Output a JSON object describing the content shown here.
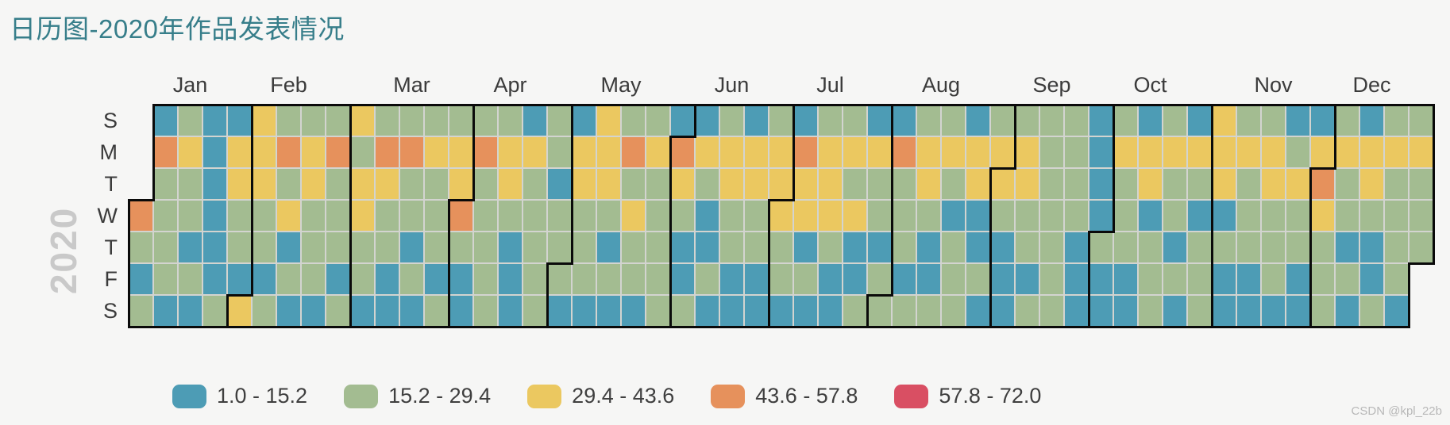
{
  "title": "日历图-2020年作品发表情况",
  "calendar": {
    "year_label": "2020",
    "month_labels": [
      "Jan",
      "Feb",
      "Mar",
      "Apr",
      "May",
      "Jun",
      "Jul",
      "Aug",
      "Sep",
      "Oct",
      "Nov",
      "Dec"
    ],
    "day_labels": [
      "S",
      "M",
      "T",
      "W",
      "T",
      "F",
      "S"
    ]
  },
  "legend": {
    "items": [
      {
        "key": "B",
        "label": "1.0 - 15.2",
        "color": "#4d9cb5"
      },
      {
        "key": "G",
        "label": "15.2 - 29.4",
        "color": "#a3bc91"
      },
      {
        "key": "Y",
        "label": "29.4 - 43.6",
        "color": "#ebc860"
      },
      {
        "key": "O",
        "label": "43.6 - 57.8",
        "color": "#e6915c"
      },
      {
        "key": "R",
        "label": "57.8 - 72.0",
        "color": "#d94f63"
      }
    ]
  },
  "watermark": "CSDN @kpl_22b",
  "chart_data": {
    "type": "heatmap",
    "subtype": "calendar",
    "year": 2020,
    "grid_start_date": "2019-12-29",
    "weeks_start_on": "Sunday",
    "bins": {
      "B": [
        1.0,
        15.2
      ],
      "G": [
        15.2,
        29.4
      ],
      "Y": [
        29.4,
        43.6
      ],
      "O": [
        43.6,
        57.8
      ],
      "R": [
        57.8,
        72.0
      ]
    },
    "bin_midpoints": {
      "B": 8.1,
      "G": 22.3,
      "Y": 36.5,
      "O": 50.7,
      "R": 64.9
    },
    "encoding": "Each string is one Sun-to-Sat week column, first char = Sunday row; letters are value bins, '.' = day outside 2020",
    "weeks": [
      "...OGBG",
      "BOGGGGB",
      "GYGGBGB",
      "BBBBBBG",
      "BYYGGBY",
      "YYYGGBG",
      "GOGYBGB",
      "GYYGGGB",
      "GOGGGBG",
      "YGYYGGB",
      "GOYGGBB",
      "GOGGBGB",
      "GYGGGBG",
      "GYYOGBB",
      "GOGGGGG",
      "GYYGBBB",
      "BYGGGGG",
      "GGBGGGB",
      "BYYGGGB",
      "YYYGBGB",
      "GOGYGGB",
      "GYGGGGG",
      "BOYGBBG",
      "BYGBBGB",
      "GYYGGBB",
      "BYYGGBB",
      "GYYYGGB",
      "BOYYBGB",
      "GYYYGBB",
      "GYGYBBG",
      "BYGGBGG",
      "BOGGGBG",
      "GYYGBBG",
      "GYGBGGG",
      "BYYBBGB",
      "GYYGBBB",
      "GYYGGBG",
      "GGGGGGG",
      "GGGGBBB",
      "BBBBGBB",
      "GYGGGBB",
      "BYYBGGG",
      "GYGGBGB",
      "BYGBGGG",
      "YYYBGBB",
      "GYGGGBB",
      "GYYGGGB",
      "BGYGGBB",
      "BYOYGGG",
      "GYGGBGB",
      "BYYGBBG",
      "GYGGGGB",
      "GYGGG.."
    ]
  }
}
